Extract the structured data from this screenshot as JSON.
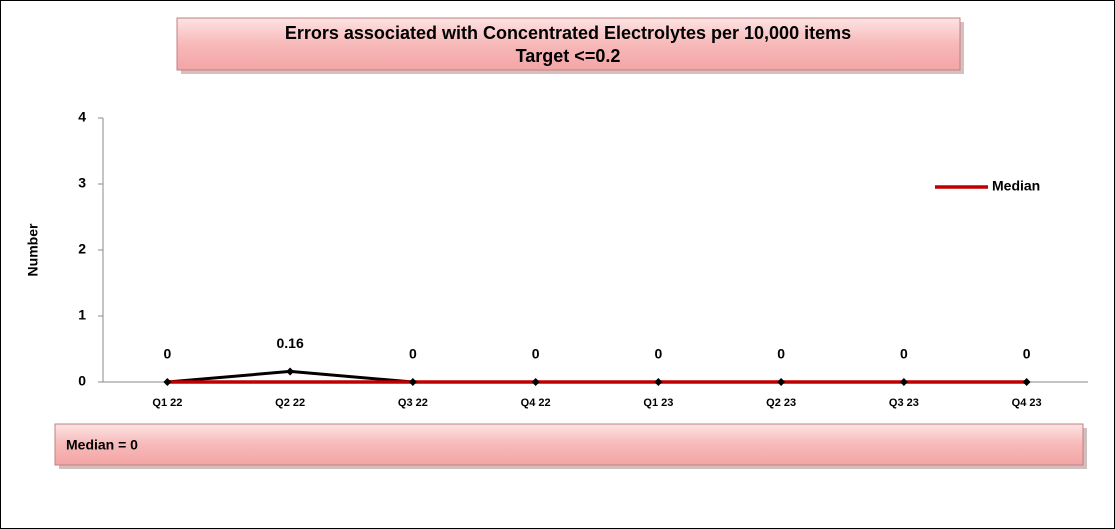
{
  "chart_data": {
    "type": "line",
    "title": "Errors associated with Concentrated Electrolytes per 10,000 items",
    "subtitle": "Target <=0.2",
    "y_label": "Number",
    "categories": [
      "Q1 22",
      "Q2 22",
      "Q3 22",
      "Q4 22",
      "Q1 23",
      "Q2 23",
      "Q3 23",
      "Q4 23"
    ],
    "series": [
      {
        "color": "#000000",
        "values": [
          0,
          0.16,
          0,
          0,
          0,
          0,
          0,
          0
        ]
      },
      {
        "name": "Median",
        "color": "#c00000",
        "values": [
          0,
          0,
          0,
          0,
          0,
          0,
          0,
          0
        ]
      }
    ],
    "ylim": [
      0,
      4
    ],
    "yticks": [
      0,
      1,
      2,
      3,
      4
    ],
    "legend": "right",
    "annotations": [
      "Median = 0"
    ]
  }
}
